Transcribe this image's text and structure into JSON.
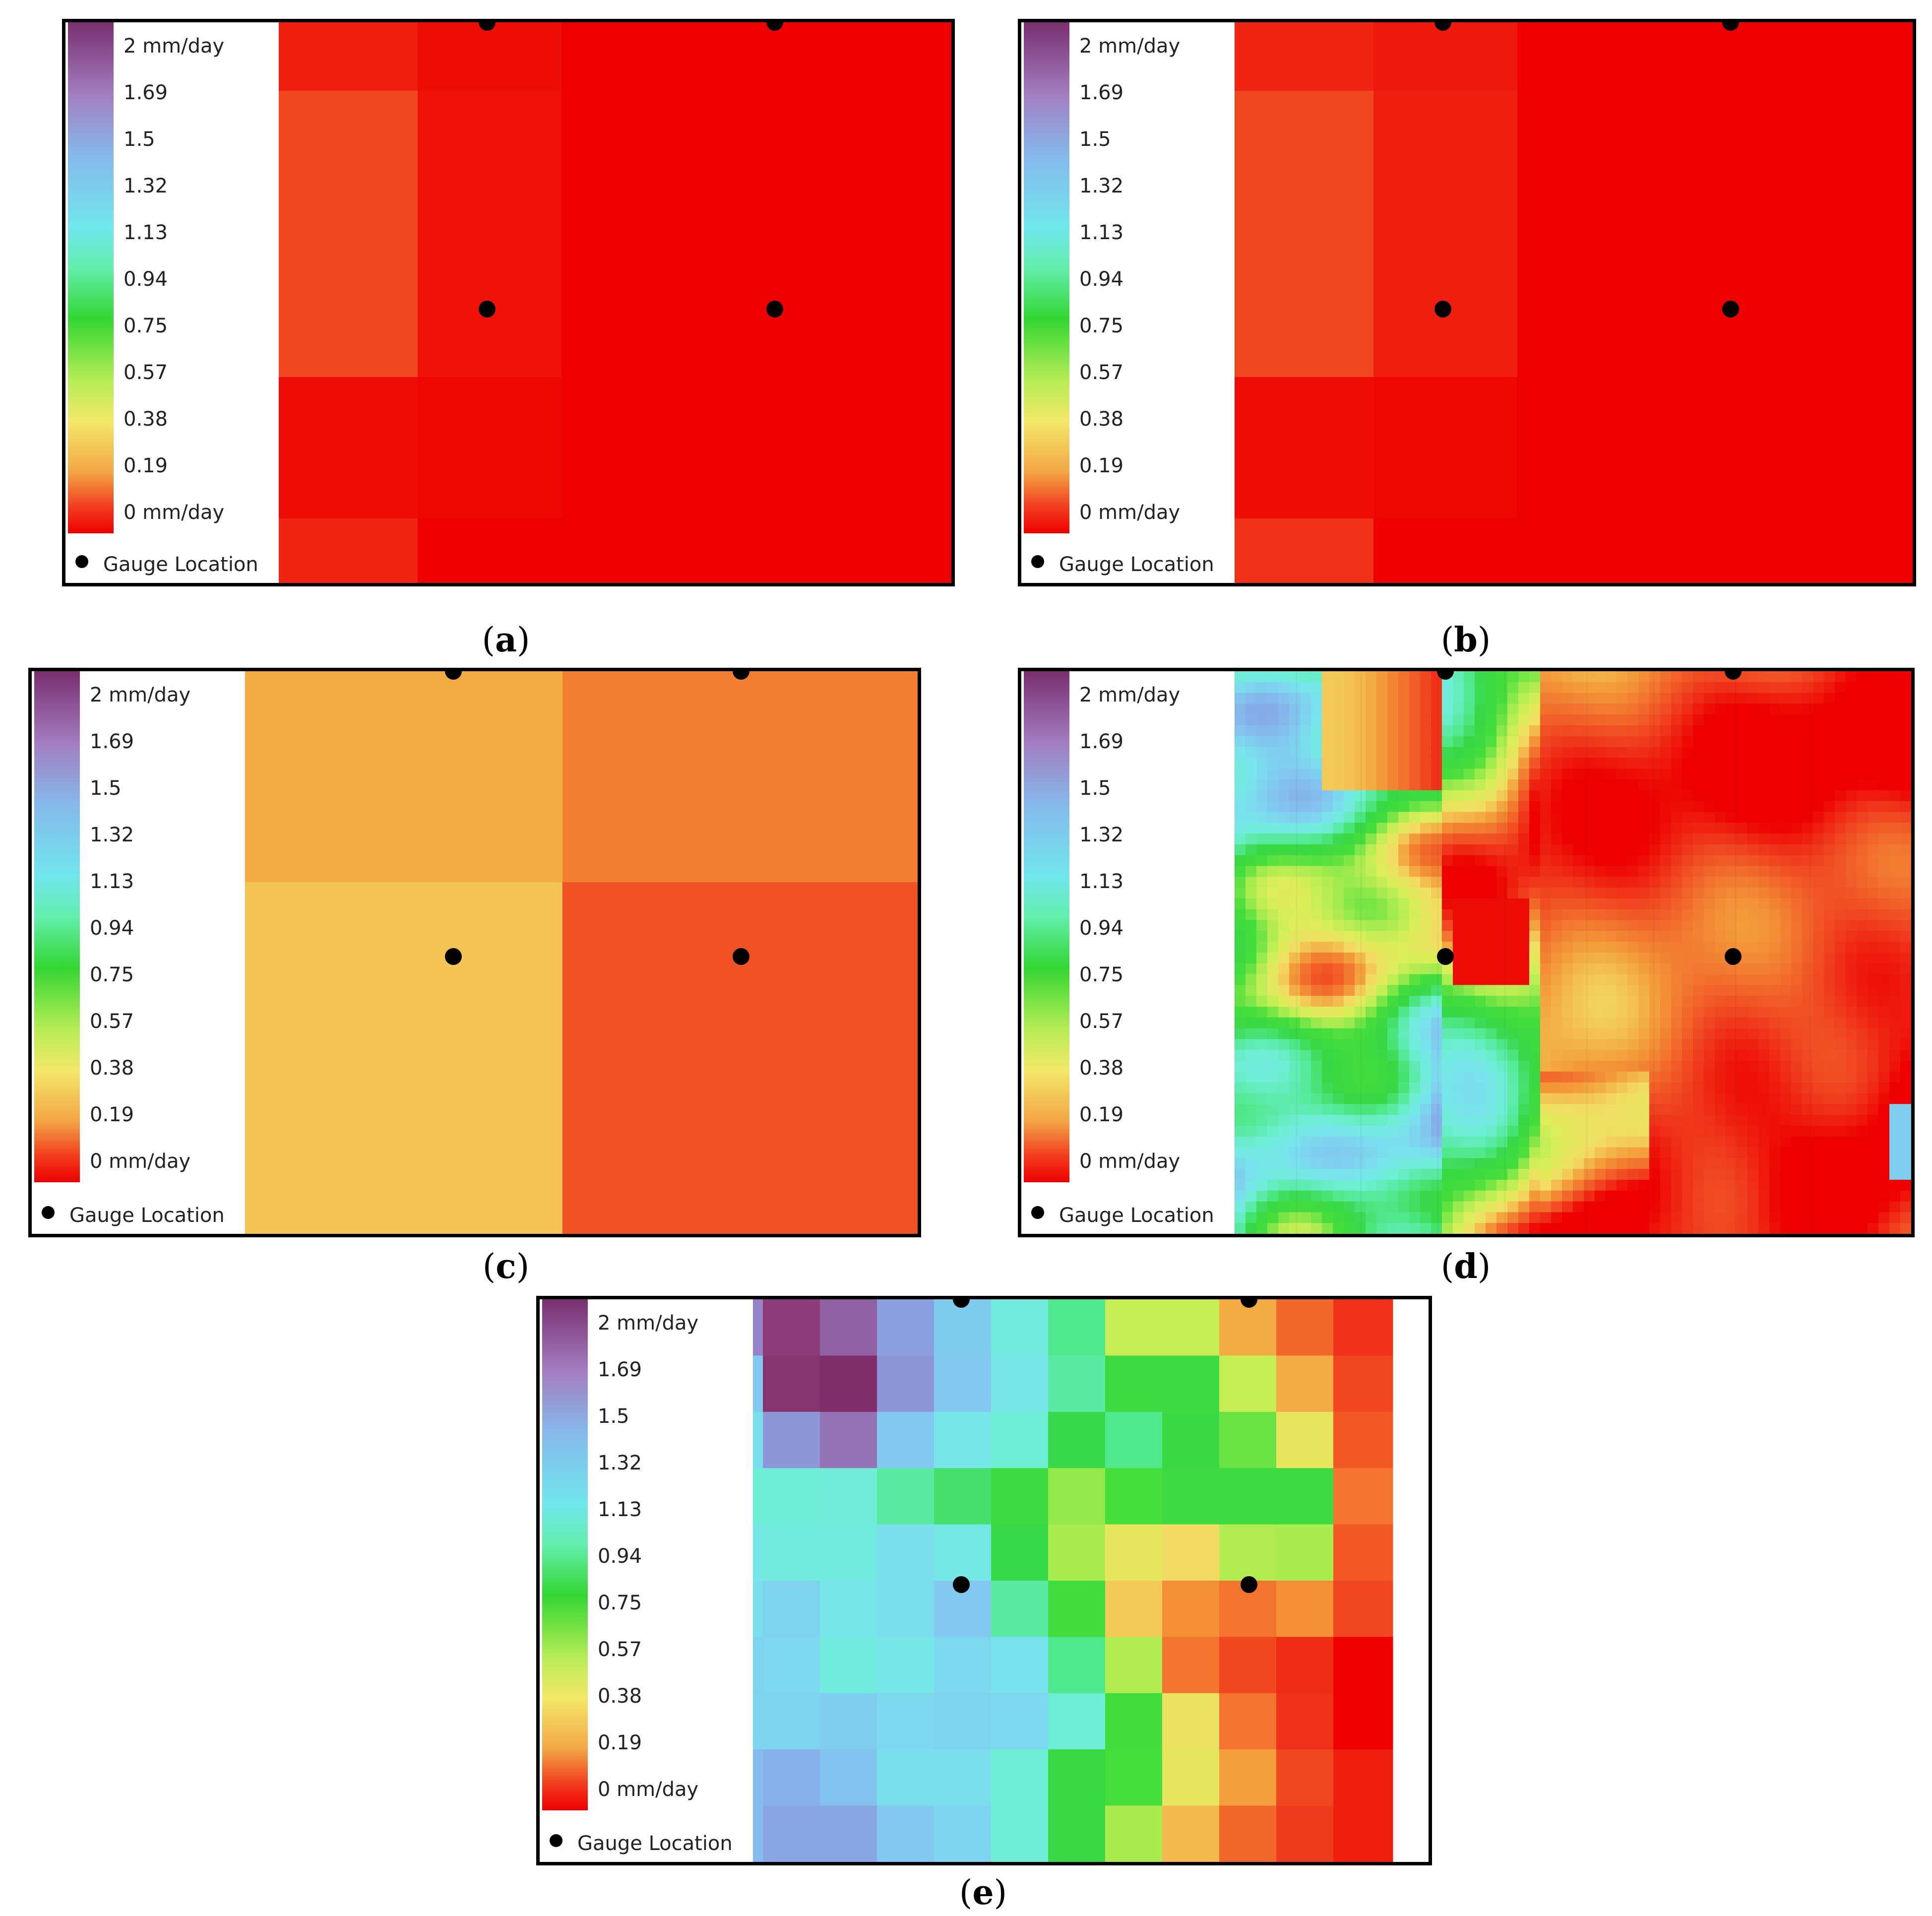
{
  "legend": {
    "ticks": [
      "2 mm/day",
      "1.69",
      "1.5",
      "1.32",
      "1.13",
      "0.94",
      "0.75",
      "0.57",
      "0.38",
      "0.19",
      "0 mm/day"
    ],
    "gauge_label": "Gauge Location"
  },
  "colors": {
    "gauge": "#000000",
    "low": "#ee0000",
    "high": "#7a2f70"
  },
  "panels": [
    {
      "id": "a",
      "caption_open": "(",
      "caption_letter": "a",
      "caption_close": ")"
    },
    {
      "id": "b",
      "caption_open": "(",
      "caption_letter": "b",
      "caption_close": ")"
    },
    {
      "id": "c",
      "caption_open": "(",
      "caption_letter": "c",
      "caption_close": ")"
    },
    {
      "id": "d",
      "caption_open": "(",
      "caption_letter": "d",
      "caption_close": ")"
    },
    {
      "id": "e",
      "caption_open": "(",
      "caption_letter": "e",
      "caption_close": ")"
    }
  ],
  "chart_data": {
    "type": "heatmap",
    "units": "mm/day",
    "value_range": [
      0,
      2
    ],
    "colorbar_ticks": [
      2,
      1.69,
      1.5,
      1.32,
      1.13,
      0.94,
      0.75,
      0.57,
      0.38,
      0.19,
      0
    ],
    "gauge_count_per_panel": 4,
    "panels": [
      {
        "id": "a",
        "description_values": "near-uniform 0 to 0.1",
        "grid": [
          [
            0.05,
            0.02,
            0.0
          ],
          [
            0.12,
            0.03,
            0.0
          ],
          [
            0.02,
            0.01,
            0.0
          ],
          [
            0.06,
            0.0,
            0.0
          ]
        ]
      },
      {
        "id": "b",
        "description_values": "near-uniform 0 to 0.1",
        "grid": [
          [
            0.06,
            0.04,
            0.0
          ],
          [
            0.12,
            0.05,
            0.0
          ],
          [
            0.02,
            0.01,
            0.0
          ],
          [
            0.08,
            0.0,
            0.0
          ]
        ]
      },
      {
        "id": "c",
        "description_values": "2x2 coarse cells",
        "grid": [
          [
            0.3,
            0.22
          ],
          [
            0.34,
            0.14
          ]
        ]
      },
      {
        "id": "e",
        "grid": [
          [
            1.72,
            1.85,
            1.78,
            1.62,
            1.43,
            1.25,
            1.05,
            0.55,
            0.55,
            0.3,
            0.18,
            0.08
          ],
          [
            1.45,
            1.9,
            1.95,
            1.65,
            1.45,
            1.3,
            1.1,
            0.85,
            0.85,
            0.55,
            0.3,
            0.12
          ],
          [
            1.35,
            1.65,
            1.75,
            1.45,
            1.3,
            1.2,
            0.95,
            1.05,
            0.9,
            0.7,
            0.45,
            0.15
          ],
          [
            1.2,
            1.2,
            1.22,
            1.1,
            1.0,
            0.85,
            0.65,
            0.75,
            0.85,
            0.85,
            0.85,
            0.2
          ],
          [
            1.3,
            1.25,
            1.25,
            1.35,
            1.28,
            0.95,
            0.62,
            0.45,
            0.38,
            0.6,
            0.62,
            0.15
          ],
          [
            1.35,
            1.4,
            1.3,
            1.35,
            1.45,
            1.1,
            0.8,
            0.35,
            0.25,
            0.2,
            0.25,
            0.12
          ],
          [
            1.4,
            1.38,
            1.25,
            1.3,
            1.38,
            1.33,
            1.05,
            0.6,
            0.2,
            0.12,
            0.07,
            0.0
          ],
          [
            1.4,
            1.4,
            1.42,
            1.38,
            1.4,
            1.38,
            1.2,
            0.8,
            0.42,
            0.2,
            0.08,
            0.0
          ],
          [
            1.5,
            1.55,
            1.48,
            1.35,
            1.35,
            1.2,
            0.92,
            0.75,
            0.45,
            0.28,
            0.12,
            0.05
          ],
          [
            1.5,
            1.6,
            1.6,
            1.45,
            1.4,
            1.2,
            0.9,
            0.62,
            0.32,
            0.18,
            0.1,
            0.05
          ]
        ]
      }
    ]
  }
}
